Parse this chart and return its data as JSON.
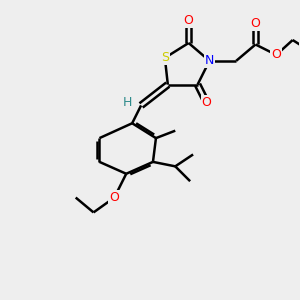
{
  "background_color": "#eeeeee",
  "atom_colors": {
    "C": "#000000",
    "H": "#2e8b8b",
    "N": "#0000ff",
    "O": "#ff0000",
    "S": "#cccc00"
  },
  "bond_color": "#000000",
  "bond_width": 1.8,
  "figsize": [
    3.0,
    3.0
  ],
  "dpi": 100
}
